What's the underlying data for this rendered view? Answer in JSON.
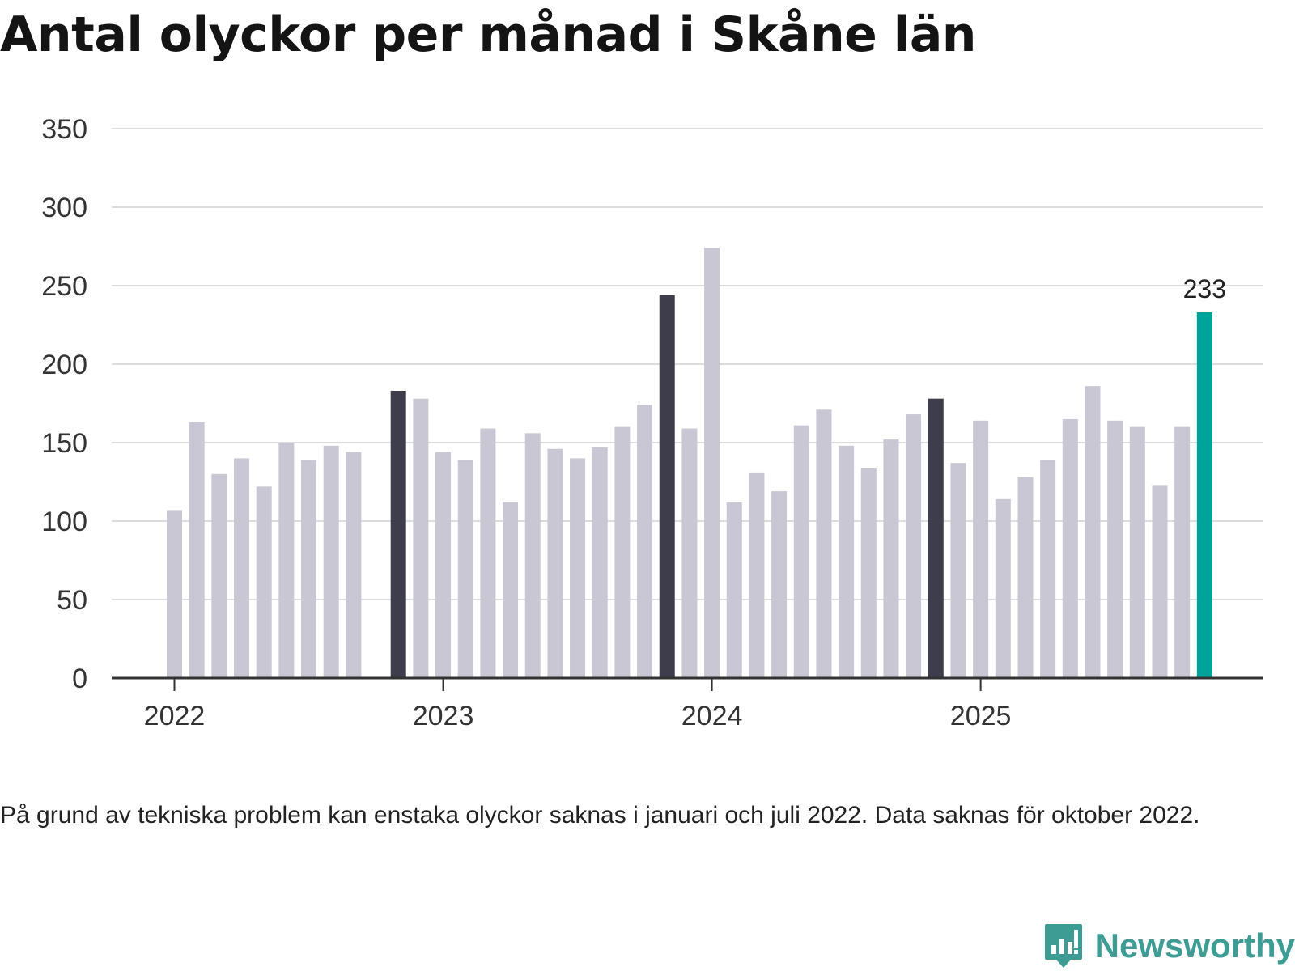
{
  "chart_data": {
    "type": "bar",
    "title": "Antal olyckor per månad i Skåne län",
    "xlabel": "",
    "ylabel": "",
    "ylim": [
      0,
      350
    ],
    "yticks": [
      "0",
      "50",
      "100",
      "150",
      "200",
      "250",
      "300",
      "350"
    ],
    "x_year_labels": [
      "2022",
      "2023",
      "2024",
      "2025"
    ],
    "categories": [
      "2022-01",
      "2022-02",
      "2022-03",
      "2022-04",
      "2022-05",
      "2022-06",
      "2022-07",
      "2022-08",
      "2022-09",
      "2022-10",
      "2022-11",
      "2022-12",
      "2023-01",
      "2023-02",
      "2023-03",
      "2023-04",
      "2023-05",
      "2023-06",
      "2023-07",
      "2023-08",
      "2023-09",
      "2023-10",
      "2023-11",
      "2023-12",
      "2024-01",
      "2024-02",
      "2024-03",
      "2024-04",
      "2024-05",
      "2024-06",
      "2024-07",
      "2024-08",
      "2024-09",
      "2024-10",
      "2024-11",
      "2024-12",
      "2025-01",
      "2025-02",
      "2025-03",
      "2025-04",
      "2025-05",
      "2025-06",
      "2025-07",
      "2025-08",
      "2025-09",
      "2025-10",
      "2025-11"
    ],
    "values": [
      107,
      163,
      130,
      140,
      122,
      150,
      139,
      148,
      144,
      null,
      183,
      178,
      144,
      139,
      159,
      112,
      156,
      146,
      140,
      147,
      160,
      174,
      244,
      159,
      274,
      112,
      131,
      119,
      161,
      171,
      148,
      134,
      152,
      168,
      178,
      137,
      164,
      114,
      128,
      139,
      165,
      186,
      164,
      160,
      123,
      160,
      233
    ],
    "highlight_dark_months": [
      "2022-11",
      "2023-11",
      "2024-11"
    ],
    "highlight_latest_month": "2025-11",
    "data_labels": [
      {
        "category": "2025-11",
        "text": "233"
      }
    ],
    "colors": {
      "default": "#c8c7d3",
      "dark": "#3e3d4c",
      "latest": "#00a399",
      "grid": "#dddddd",
      "axis": "#333333"
    },
    "grid": true
  },
  "note": "På grund av tekniska problem kan enstaka olyckor saknas i januari och juli 2022. Data saknas för oktober 2022.",
  "brand": {
    "name": "Newsworthy",
    "color": "#3d9c94",
    "icon": "newsworthy-logo-icon"
  }
}
